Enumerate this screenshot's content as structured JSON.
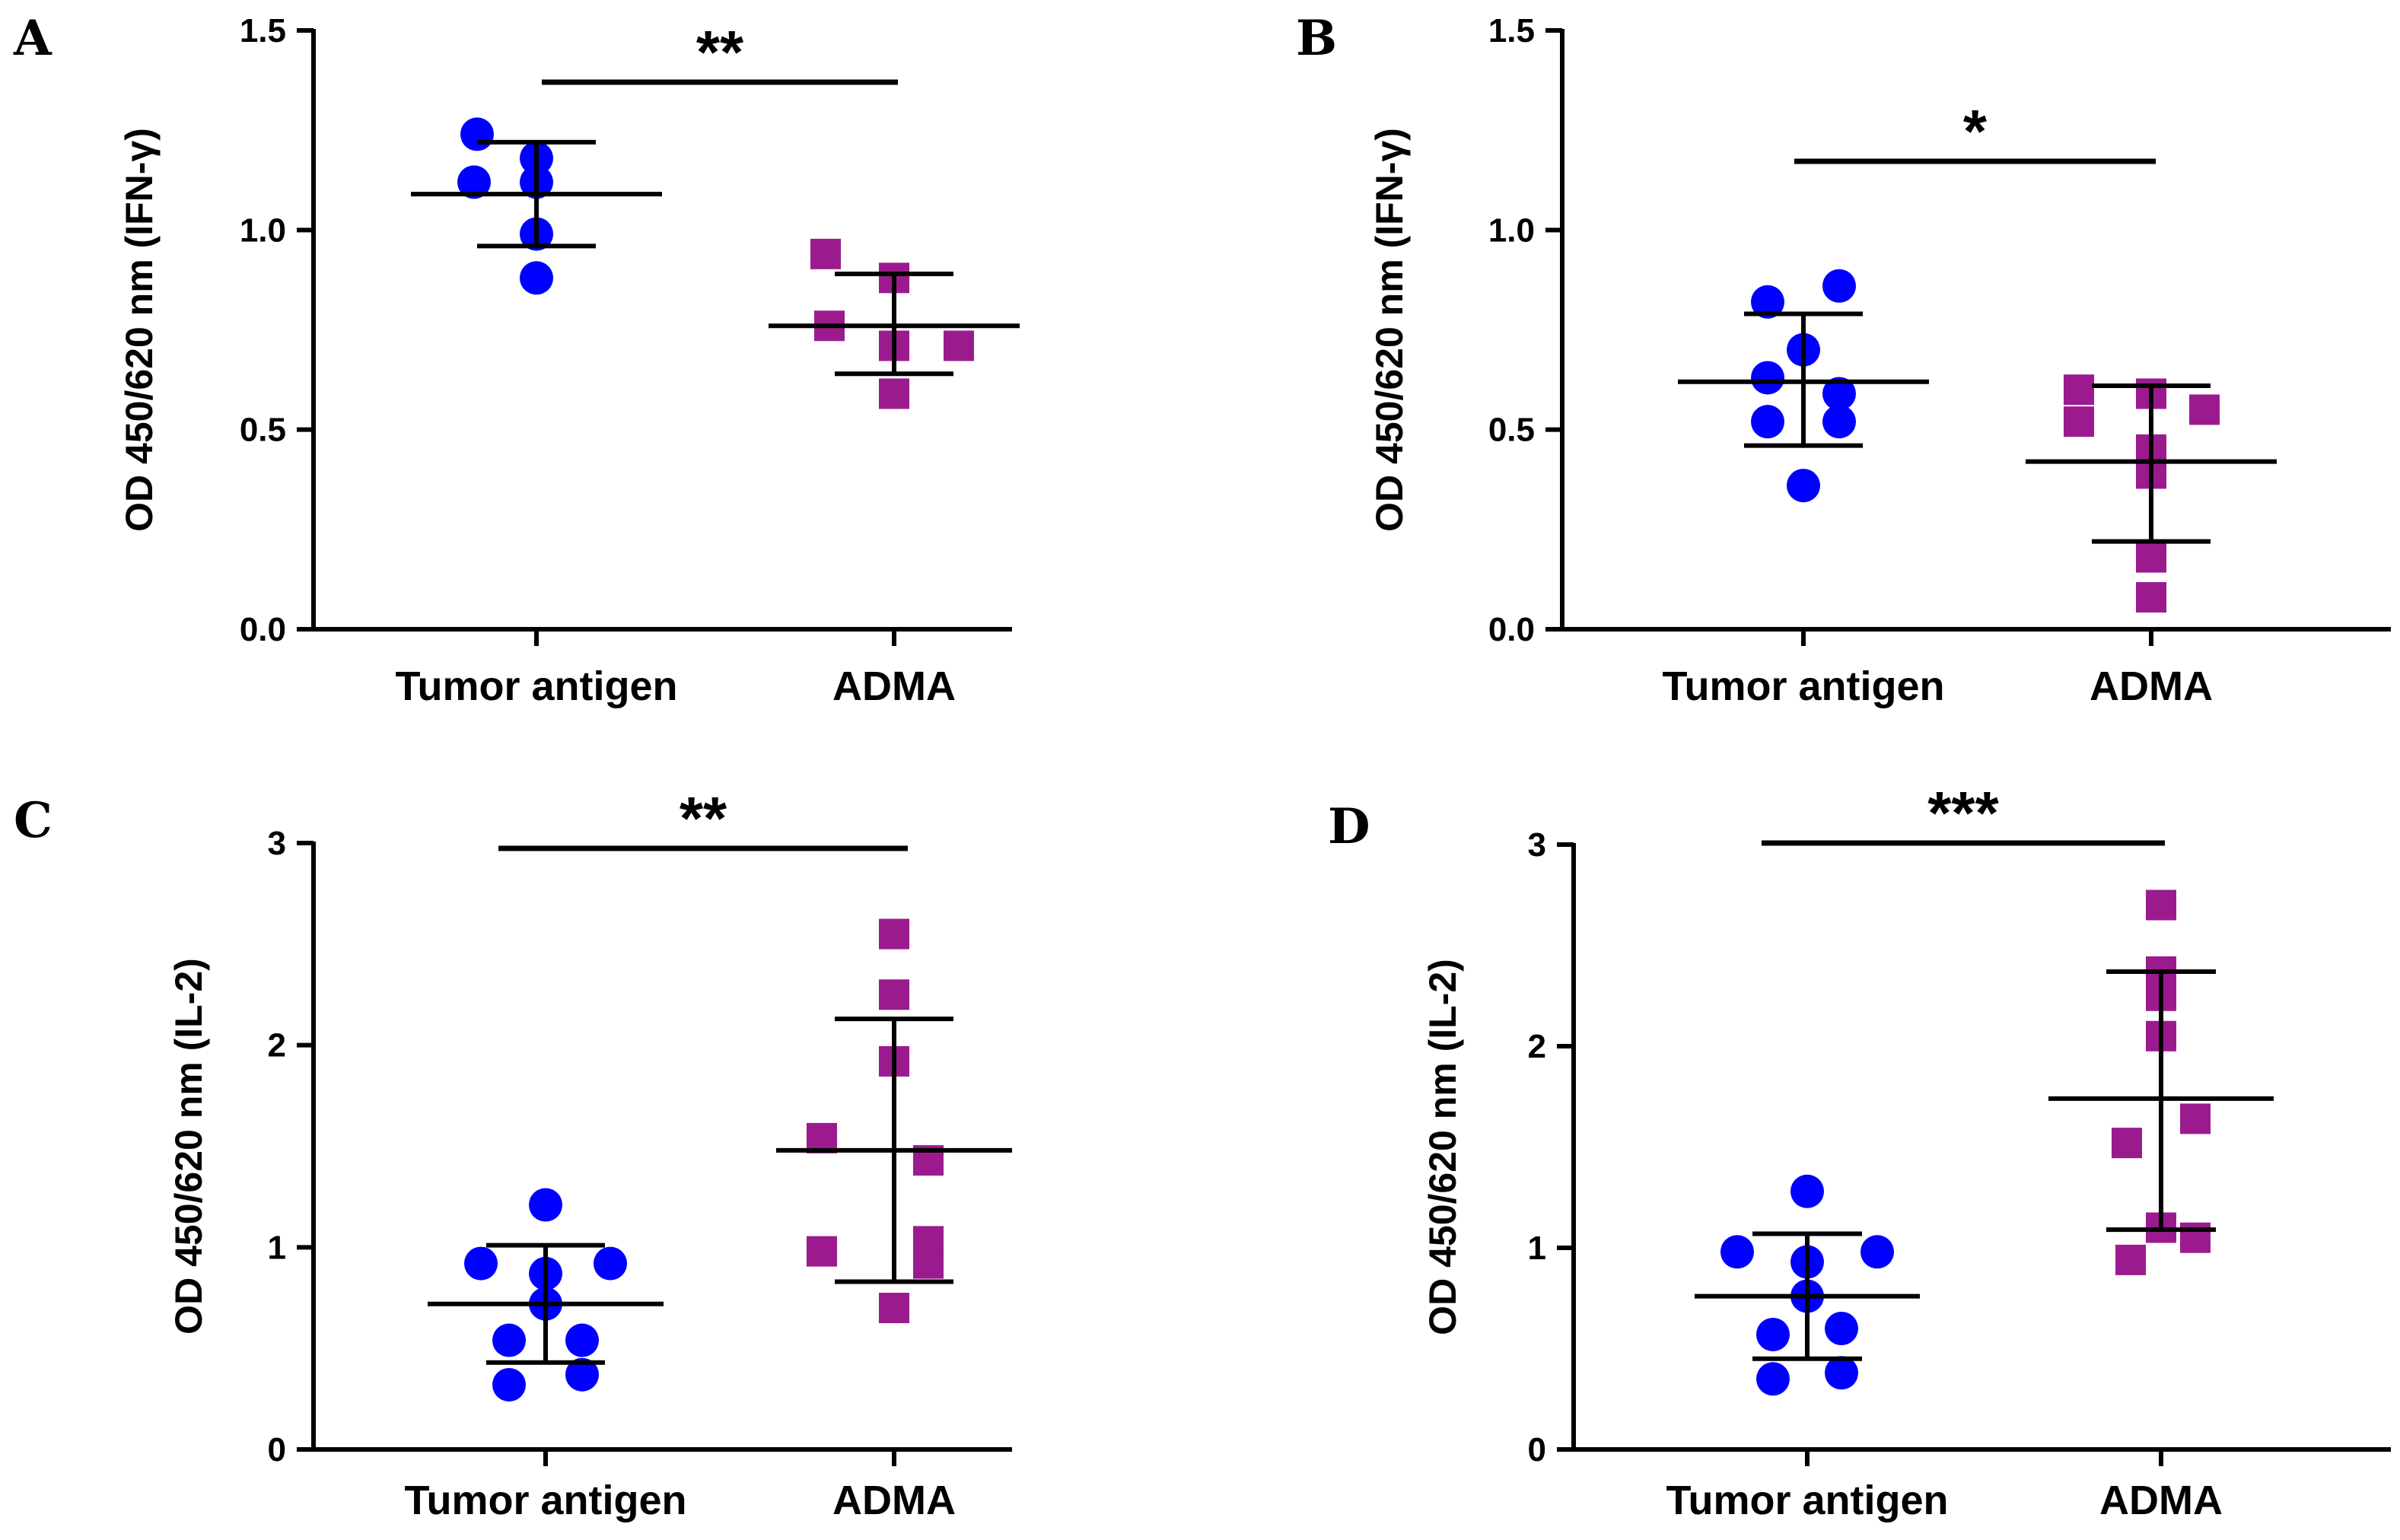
{
  "colors": {
    "tumor_antigen": "#0000ff",
    "adma": "#9b1b8f",
    "axis": "#000000"
  },
  "chart_data": [
    {
      "panel": "A",
      "type": "scatter",
      "ylabel": "OD 450/620 nm (IFN-γ)",
      "ylim": [
        0,
        1.5
      ],
      "yticks": [
        "0.0",
        "0.5",
        "1.0",
        "1.5"
      ],
      "categories": [
        "Tumor antigen",
        "ADMA"
      ],
      "significance": "**",
      "series": [
        {
          "category": "Tumor antigen",
          "marker": "circle",
          "color": "#0000ff",
          "values": [
            1.24,
            1.12,
            1.18,
            1.12,
            0.99,
            0.88
          ],
          "mean": 1.09,
          "sd_upper": 1.22,
          "sd_lower": 0.96
        },
        {
          "category": "ADMA",
          "marker": "square",
          "color": "#9b1b8f",
          "values": [
            0.94,
            0.76,
            0.88,
            0.71,
            0.71,
            0.59
          ],
          "mean": 0.76,
          "sd_upper": 0.89,
          "sd_lower": 0.64
        }
      ]
    },
    {
      "panel": "B",
      "type": "scatter",
      "ylabel": "OD 450/620 nm (IFN-γ)",
      "ylim": [
        0,
        1.5
      ],
      "yticks": [
        "0.0",
        "0.5",
        "1.0",
        "1.5"
      ],
      "categories": [
        "Tumor antigen",
        "ADMA"
      ],
      "significance": "*",
      "series": [
        {
          "category": "Tumor antigen",
          "marker": "circle",
          "color": "#0000ff",
          "values": [
            0.82,
            0.86,
            0.7,
            0.63,
            0.59,
            0.52,
            0.52,
            0.36
          ],
          "mean": 0.62,
          "sd_upper": 0.79,
          "sd_lower": 0.46
        },
        {
          "category": "ADMA",
          "marker": "square",
          "color": "#9b1b8f",
          "values": [
            0.6,
            0.59,
            0.52,
            0.55,
            0.45,
            0.39,
            0.18,
            0.08
          ],
          "mean": 0.42,
          "sd_upper": 0.61,
          "sd_lower": 0.22
        }
      ]
    },
    {
      "panel": "C",
      "type": "scatter",
      "ylabel": "OD 450/620 nm (IL-2)",
      "ylim": [
        0,
        3
      ],
      "yticks": [
        "0",
        "1",
        "2",
        "3"
      ],
      "categories": [
        "Tumor antigen",
        "ADMA"
      ],
      "significance": "**",
      "series": [
        {
          "category": "Tumor antigen",
          "marker": "circle",
          "color": "#0000ff",
          "values": [
            1.21,
            0.92,
            0.87,
            0.92,
            0.72,
            0.54,
            0.54,
            0.37,
            0.32
          ],
          "mean": 0.72,
          "sd_upper": 1.01,
          "sd_lower": 0.43
        },
        {
          "category": "ADMA",
          "marker": "square",
          "color": "#9b1b8f",
          "values": [
            2.55,
            2.25,
            1.92,
            1.54,
            1.43,
            1.03,
            0.98,
            0.92,
            0.7
          ],
          "mean": 1.48,
          "sd_upper": 2.13,
          "sd_lower": 0.83
        }
      ]
    },
    {
      "panel": "D",
      "type": "scatter",
      "ylabel": "OD 450/620 nm (IL-2)",
      "ylim": [
        0,
        3
      ],
      "yticks": [
        "0",
        "1",
        "2",
        "3"
      ],
      "categories": [
        "Tumor antigen",
        "ADMA"
      ],
      "significance": "***",
      "series": [
        {
          "category": "Tumor antigen",
          "marker": "circle",
          "color": "#0000ff",
          "values": [
            1.28,
            0.98,
            0.98,
            0.93,
            0.76,
            0.6,
            0.57,
            0.38,
            0.35
          ],
          "mean": 0.76,
          "sd_upper": 1.07,
          "sd_lower": 0.45
        },
        {
          "category": "ADMA",
          "marker": "square",
          "color": "#9b1b8f",
          "values": [
            2.7,
            2.37,
            2.25,
            2.05,
            1.64,
            1.52,
            1.1,
            1.05,
            0.94
          ],
          "mean": 1.74,
          "sd_upper": 2.37,
          "sd_lower": 1.09
        }
      ]
    }
  ]
}
